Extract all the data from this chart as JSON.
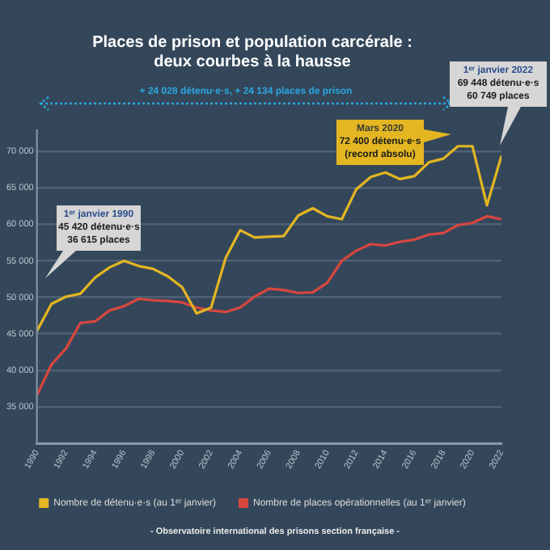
{
  "chart_data": {
    "type": "line",
    "title": "Places de prison et population carcérale :\ndeux courbes à la hausse",
    "x": [
      1990,
      1991,
      1992,
      1993,
      1994,
      1995,
      1996,
      1997,
      1998,
      1999,
      2000,
      2001,
      2002,
      2003,
      2004,
      2005,
      2006,
      2007,
      2008,
      2009,
      2010,
      2011,
      2012,
      2013,
      2014,
      2015,
      2016,
      2017,
      2018,
      2019,
      2020,
      2021,
      2022
    ],
    "series": [
      {
        "name": "Nombre de détenu·e·s (au 1ᵉʳ janvier)",
        "color": "#e3b622",
        "values": [
          45400,
          49100,
          50100,
          50500,
          52700,
          54100,
          55000,
          54300,
          53900,
          52900,
          51400,
          47800,
          48600,
          55400,
          59200,
          58200,
          58300,
          58400,
          61200,
          62200,
          61100,
          60700,
          64800,
          66500,
          67100,
          66200,
          66600,
          68500,
          69000,
          70700,
          70700,
          62600,
          69400
        ]
      },
      {
        "name": "Nombre de places opérationnelles (au 1ᵉʳ janvier)",
        "color": "#d8463e",
        "values": [
          36600,
          40800,
          43000,
          46500,
          46700,
          48200,
          48800,
          49800,
          49600,
          49500,
          49300,
          48600,
          48200,
          48000,
          48600,
          50100,
          51200,
          51000,
          50600,
          50700,
          52000,
          55000,
          56400,
          57300,
          57100,
          57600,
          57900,
          58600,
          58800,
          59900,
          60200,
          61100,
          60700
        ]
      }
    ],
    "xlim": [
      1990,
      2022
    ],
    "xticks": [
      1990,
      1992,
      1994,
      1996,
      1998,
      2000,
      2002,
      2004,
      2006,
      2008,
      2010,
      2012,
      2014,
      2016,
      2018,
      2020,
      2022
    ],
    "ylim": [
      30000,
      73000
    ],
    "yticks": [
      {
        "value": 30000,
        "label": null
      },
      {
        "value": 35000,
        "label": "35 000"
      },
      {
        "value": 40000,
        "label": "40 000"
      },
      {
        "value": 45000,
        "label": "45 000"
      },
      {
        "value": 50000,
        "label": "50 000"
      },
      {
        "value": 55000,
        "label": "55 000"
      },
      {
        "value": 60000,
        "label": "60 000"
      },
      {
        "value": 65000,
        "label": "65 000"
      },
      {
        "value": 70000,
        "label": "70 000"
      }
    ],
    "grid": "y",
    "legend": "bottom",
    "marker": "none",
    "line_style": "solid",
    "annotations": [
      "+ 24 028 détenu·e·s, + 24 134 places de prison",
      "1ᵉʳ janvier 1990\n45 420 détenu·e·s\n36 615 places",
      "Mars 2020\n72 400 détenu·e·s\n(record absolu)",
      "1ᵉʳ janvier 2022\n69 448 détenu·e·s\n60 749 places",
      "- Observatoire international des prisons section française -"
    ]
  }
}
